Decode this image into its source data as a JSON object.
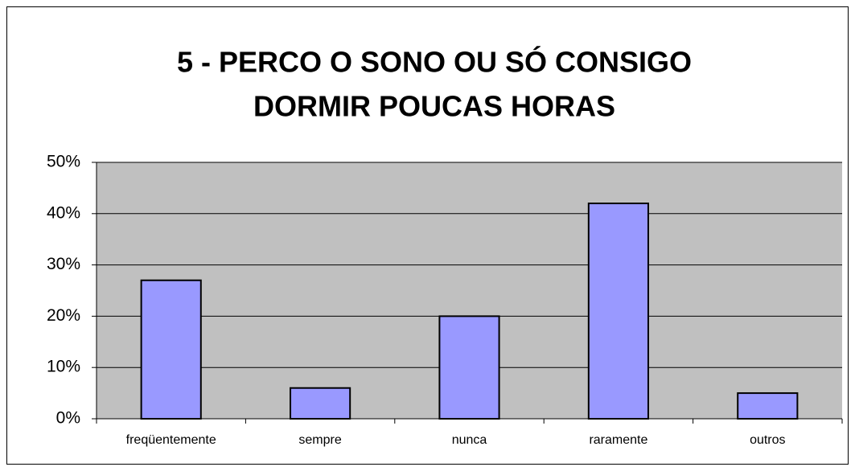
{
  "chart_data": {
    "type": "bar",
    "title": [
      "5 - PERCO O SONO OU SÓ CONSIGO",
      "DORMIR POUCAS HORAS"
    ],
    "categories": [
      "freqüentemente",
      "sempre",
      "nunca",
      "raramente",
      "outros"
    ],
    "values": [
      27,
      6,
      20,
      42,
      5
    ],
    "color": "#9999ff",
    "ylim": [
      0,
      50
    ],
    "yticks": [
      {
        "value": 0,
        "label": "0%"
      },
      {
        "value": 10,
        "label": "10%"
      },
      {
        "value": 20,
        "label": "20%"
      },
      {
        "value": 30,
        "label": "30%"
      },
      {
        "value": 40,
        "label": "40%"
      },
      {
        "value": 50,
        "label": "50%"
      }
    ],
    "grid": true
  }
}
